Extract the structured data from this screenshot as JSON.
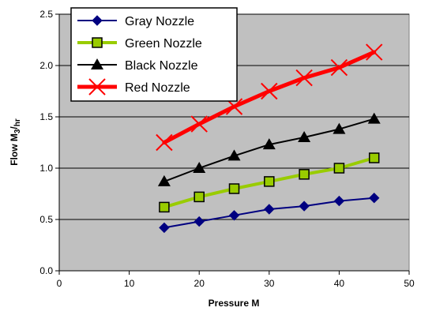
{
  "chart_data": {
    "type": "line",
    "title": "",
    "xlabel": "Pressure M",
    "ylabel": "Flow M3/hr",
    "ylabel_parts": {
      "main": "Flow M",
      "sub1": "3",
      "sep": "/",
      "sub2": "hr"
    },
    "xlim": [
      0,
      50
    ],
    "ylim": [
      0,
      2.5
    ],
    "x_ticks": [
      0,
      10,
      20,
      30,
      40,
      50
    ],
    "x_tick_labels": [
      "0",
      "10",
      "20",
      "30",
      "40",
      "50"
    ],
    "y_ticks": [
      0,
      0.5,
      1.0,
      1.5,
      2.0,
      2.5
    ],
    "y_tick_labels": [
      "0.0",
      "0.5",
      "1.0",
      "1.5",
      "2.0",
      "2.5"
    ],
    "grid": "horizontal",
    "plot_background": "#c0c0c0",
    "legend_position": "top-left",
    "x": [
      15,
      20,
      25,
      30,
      35,
      40,
      45
    ],
    "series": [
      {
        "name": "Gray Nozzle",
        "color": "#000080",
        "marker": "diamond",
        "line_width": 2,
        "values": [
          0.42,
          0.48,
          0.54,
          0.6,
          0.63,
          0.68,
          0.71
        ]
      },
      {
        "name": "Green Nozzle",
        "color": "#99cc00",
        "marker": "square",
        "marker_fill": "#99cc00",
        "marker_stroke": "#000000",
        "line_width": 4,
        "values": [
          0.62,
          0.72,
          0.8,
          0.87,
          0.94,
          1.0,
          1.1
        ]
      },
      {
        "name": "Black Nozzle",
        "color": "#000000",
        "marker": "triangle",
        "line_width": 2,
        "values": [
          0.87,
          1.0,
          1.12,
          1.23,
          1.3,
          1.38,
          1.48
        ]
      },
      {
        "name": "Red Nozzle",
        "color": "#ff0000",
        "marker": "x",
        "line_width": 5,
        "values": [
          1.25,
          1.43,
          1.6,
          1.75,
          1.88,
          1.98,
          2.13
        ]
      }
    ]
  }
}
